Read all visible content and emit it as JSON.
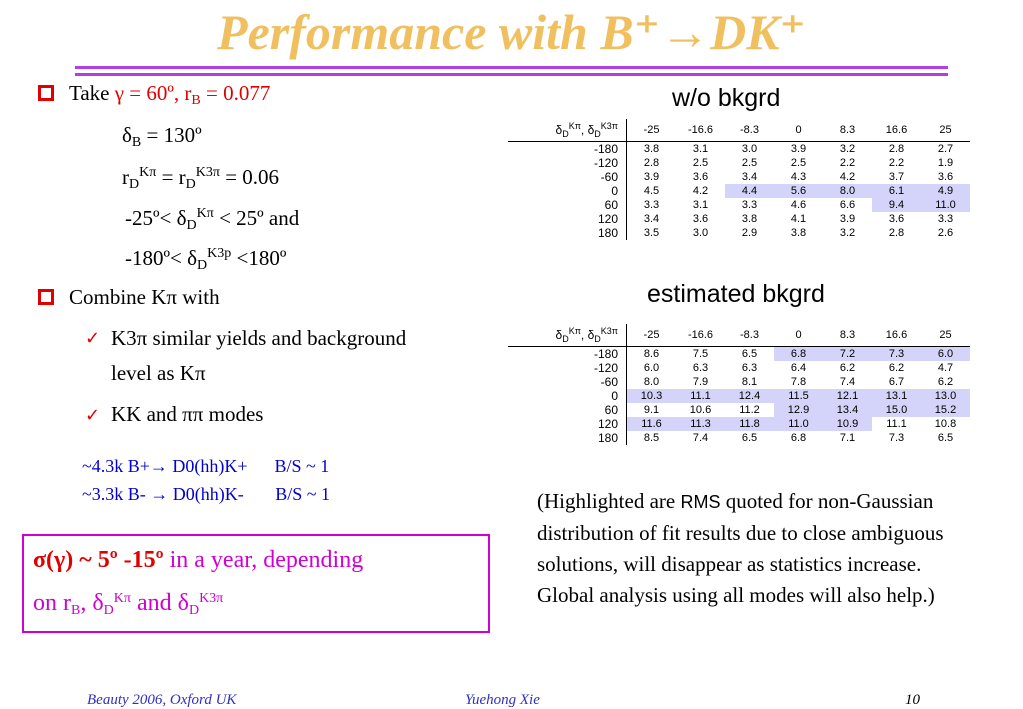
{
  "title": "Performance with B⁺→DK⁺",
  "left": {
    "take": {
      "word": "Take",
      "gamma": "γ = 60º",
      "rb": "r",
      "rb_sub": "B",
      "rb_val": " = 0.077"
    },
    "deltaB": {
      "a": "δ",
      "sub": "B",
      "b": " = 130º"
    },
    "rd": {
      "a": "r",
      "sub1": "D",
      "sup1": "Kπ",
      "b": " = r",
      "sub2": "D",
      "sup2": "K3π",
      "c": " = 0.06"
    },
    "range1": {
      "a": "-25º< δ",
      "sub": "D",
      "sup": "Kπ",
      "b": " < 25º and"
    },
    "range2": {
      "a": "-180º< δ",
      "sub": "D",
      "sup": "K3p",
      "b": " <180º"
    },
    "combine": "Combine Kπ with",
    "check1_line1": "K3π similar yields and background",
    "check1_line2": "level as Kπ",
    "check2": "KK and ππ modes",
    "yield1": "~4.3k B+→ D0(hh)K+      B/S ~ 1",
    "yield2": "~3.3k B- → D0(hh)K-       B/S ~ 1"
  },
  "box": {
    "line1_red": "σ(γ) ~ 5º -15º",
    "line1_mag": " in a year, depending",
    "line2": {
      "a": "on r",
      "sub1": "B",
      "b": ", δ",
      "sub2": "D",
      "sup2": "Kπ",
      "c": " and δ",
      "sub3": "D",
      "sup3": "K3π"
    }
  },
  "tables": {
    "corner": {
      "a": "δ",
      "sub1": "D",
      "sup1": "Kπ",
      "b": ", δ",
      "sub2": "D",
      "sup2": "K3π"
    },
    "columns": [
      "-25",
      "-16.6",
      "-8.3",
      "0",
      "8.3",
      "16.6",
      "25"
    ],
    "rows": [
      "-180",
      "-120",
      "-60",
      "0",
      "60",
      "120",
      "180"
    ],
    "wo": {
      "label": "w/o bkgrd",
      "values": [
        [
          "3.8",
          "3.1",
          "3.0",
          "3.9",
          "3.2",
          "2.8",
          "2.7"
        ],
        [
          "2.8",
          "2.5",
          "2.5",
          "2.5",
          "2.2",
          "2.2",
          "1.9"
        ],
        [
          "3.9",
          "3.6",
          "3.4",
          "4.3",
          "4.2",
          "3.7",
          "3.6"
        ],
        [
          "4.5",
          "4.2",
          "4.4",
          "5.6",
          "8.0",
          "6.1",
          "4.9"
        ],
        [
          "3.3",
          "3.1",
          "3.3",
          "4.6",
          "6.6",
          "9.4",
          "11.0"
        ],
        [
          "3.4",
          "3.6",
          "3.8",
          "4.1",
          "3.9",
          "3.6",
          "3.3"
        ],
        [
          "3.5",
          "3.0",
          "2.9",
          "3.8",
          "3.2",
          "2.8",
          "2.6"
        ]
      ],
      "highlight": [
        [
          3,
          2
        ],
        [
          3,
          3
        ],
        [
          3,
          4
        ],
        [
          3,
          5
        ],
        [
          3,
          6
        ],
        [
          4,
          5
        ],
        [
          4,
          6
        ]
      ],
      "highlight_color": "#d4d4fa"
    },
    "est": {
      "label": "estimated bkgrd",
      "values": [
        [
          "8.6",
          "7.5",
          "6.5",
          "6.8",
          "7.2",
          "7.3",
          "6.0"
        ],
        [
          "6.0",
          "6.3",
          "6.3",
          "6.4",
          "6.2",
          "6.2",
          "4.7"
        ],
        [
          "8.0",
          "7.9",
          "8.1",
          "7.8",
          "7.4",
          "6.7",
          "6.2"
        ],
        [
          "10.3",
          "11.1",
          "12.4",
          "11.5",
          "12.1",
          "13.1",
          "13.0"
        ],
        [
          "9.1",
          "10.6",
          "11.2",
          "12.9",
          "13.4",
          "15.0",
          "15.2"
        ],
        [
          "11.6",
          "11.3",
          "11.8",
          "11.0",
          "10.9",
          "11.1",
          "10.8"
        ],
        [
          "8.5",
          "7.4",
          "6.5",
          "6.8",
          "7.1",
          "7.3",
          "6.5"
        ]
      ],
      "highlight": [
        [
          0,
          3
        ],
        [
          0,
          4
        ],
        [
          0,
          5
        ],
        [
          0,
          6
        ],
        [
          3,
          0
        ],
        [
          3,
          1
        ],
        [
          3,
          2
        ],
        [
          3,
          3
        ],
        [
          3,
          4
        ],
        [
          3,
          5
        ],
        [
          3,
          6
        ],
        [
          4,
          3
        ],
        [
          4,
          4
        ],
        [
          4,
          5
        ],
        [
          4,
          6
        ],
        [
          5,
          0
        ],
        [
          5,
          1
        ],
        [
          5,
          2
        ],
        [
          5,
          3
        ],
        [
          5,
          4
        ]
      ],
      "highlight_color": "#d4d4fa"
    }
  },
  "note": {
    "a": "(Highlighted are ",
    "rms": "RMS",
    "b": " quoted for non-Gaussian distribution  of fit results due to close ambiguous solutions, will disappear as statistics increase.  Global analysis using all modes will also help.)"
  },
  "footer": {
    "left": "Beauty 2006, Oxford UK",
    "center": "Yuehong Xie",
    "right": "10"
  },
  "colors": {
    "title": "#f0c060",
    "rule": "#b23fe0",
    "red": "#e00000",
    "blue": "#0000d0",
    "magenta": "#d000d0"
  }
}
